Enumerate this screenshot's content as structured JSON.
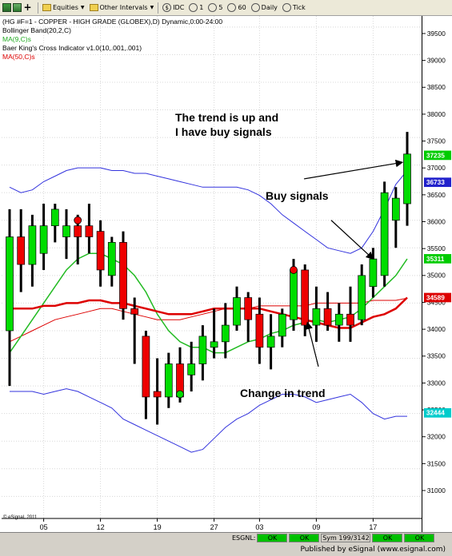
{
  "toolbar": {
    "items": [
      {
        "name": "equities",
        "label": "Equities"
      },
      {
        "name": "other-intervals",
        "label": "Other Intervals"
      },
      {
        "name": "idc",
        "label": "IDC"
      },
      {
        "name": "int-1",
        "label": "1"
      },
      {
        "name": "int-5",
        "label": "5"
      },
      {
        "name": "int-60",
        "label": "60"
      },
      {
        "name": "daily",
        "label": "Daily"
      },
      {
        "name": "tick",
        "label": "Tick"
      }
    ]
  },
  "legend": {
    "line1": "(HG #F=1 - COPPER - HIGH GRADE (GLOBEX),D) Dynamic,0:00-24:00",
    "line2": "Bollinger Band(20,2,C)",
    "line3": "MA(9,C)s",
    "line4": "Baer King's Cross Indicator v1.0(10,.001,.001)",
    "line5": "MA(50,C)s"
  },
  "annotations": {
    "trend_up_1": "The trend is up and",
    "trend_up_2": "I have  buy signals",
    "buy_signals": "Buy signals",
    "change_trend": "Change in trend"
  },
  "copyright": "© eSignal, 2011",
  "status": {
    "esgnl": "ESGNL:",
    "ok": "OK",
    "sym": "Sym 199/3142"
  },
  "footer": "Published by eSignal (www.esignal.com)",
  "colors": {
    "up": "#00dd00",
    "down": "#ee0000",
    "bb": "#3333dd",
    "ma9": "#22bb22",
    "ma50": "#dd0000"
  },
  "chart_data": {
    "type": "candlestick",
    "title": "(HG #F=1 - COPPER - HIGH GRADE (GLOBEX),D)",
    "x_tick_labels": [
      {
        "label": "05",
        "bar": 3
      },
      {
        "label": "12",
        "bar": 8
      },
      {
        "label": "19",
        "bar": 13
      },
      {
        "label": "27",
        "bar": 18
      },
      {
        "label": "03",
        "bar": 22
      },
      {
        "label": "09",
        "bar": 27
      },
      {
        "label": "17",
        "bar": 32
      }
    ],
    "ylim": [
      30600,
      39700
    ],
    "y_ticks": [
      31000,
      31500,
      32000,
      32500,
      33000,
      33500,
      34000,
      34500,
      35000,
      35500,
      36000,
      36500,
      37000,
      37500,
      38000,
      38500,
      39000,
      39500
    ],
    "y_tick_labels": [
      "31000",
      "31500",
      "32000",
      "32500",
      "33000",
      "33500",
      "34000",
      "34500",
      "35000",
      "35500",
      "36000",
      "36500",
      "37000",
      "37500",
      "38000",
      "38500",
      "39000",
      "39500"
    ],
    "price_labels": [
      {
        "value": 37235,
        "label": "37235",
        "color": "#00cc00"
      },
      {
        "value": 36733,
        "label": "36733",
        "color": "#2222cc"
      },
      {
        "value": 35311,
        "label": "35311",
        "color": "#00cc00"
      },
      {
        "value": 34589,
        "label": "34589",
        "color": "#dd0000"
      },
      {
        "value": 32444,
        "label": "32444",
        "color": "#00cccc"
      }
    ],
    "candles": [
      {
        "o": 34000,
        "h": 36200,
        "l": 33000,
        "c": 35700
      },
      {
        "o": 35700,
        "h": 36200,
        "l": 34700,
        "c": 35200
      },
      {
        "o": 35200,
        "h": 36100,
        "l": 34800,
        "c": 35900
      },
      {
        "o": 35400,
        "h": 36300,
        "l": 35100,
        "c": 35900
      },
      {
        "o": 35900,
        "h": 36300,
        "l": 35600,
        "c": 36200
      },
      {
        "o": 35700,
        "h": 36200,
        "l": 35300,
        "c": 35900
      },
      {
        "o": 35900,
        "h": 36100,
        "l": 35200,
        "c": 35700
      },
      {
        "o": 35900,
        "h": 36300,
        "l": 35400,
        "c": 35700
      },
      {
        "o": 35800,
        "h": 36000,
        "l": 34800,
        "c": 35100
      },
      {
        "o": 35000,
        "h": 35700,
        "l": 34800,
        "c": 35600
      },
      {
        "o": 35600,
        "h": 35800,
        "l": 34200,
        "c": 34400
      },
      {
        "o": 34400,
        "h": 34600,
        "l": 33400,
        "c": 34300
      },
      {
        "o": 33900,
        "h": 34000,
        "l": 32400,
        "c": 32800
      },
      {
        "o": 32900,
        "h": 33500,
        "l": 32300,
        "c": 32800
      },
      {
        "o": 32800,
        "h": 33600,
        "l": 32600,
        "c": 33400
      },
      {
        "o": 33400,
        "h": 33700,
        "l": 32700,
        "c": 32800
      },
      {
        "o": 33200,
        "h": 33800,
        "l": 32900,
        "c": 33400
      },
      {
        "o": 33400,
        "h": 34100,
        "l": 33100,
        "c": 33900
      },
      {
        "o": 33700,
        "h": 34400,
        "l": 33500,
        "c": 33800
      },
      {
        "o": 33800,
        "h": 34500,
        "l": 33500,
        "c": 34100
      },
      {
        "o": 34100,
        "h": 34800,
        "l": 34000,
        "c": 34600
      },
      {
        "o": 34600,
        "h": 34700,
        "l": 33800,
        "c": 34200
      },
      {
        "o": 34300,
        "h": 34600,
        "l": 33400,
        "c": 33700
      },
      {
        "o": 33700,
        "h": 34300,
        "l": 33300,
        "c": 33900
      },
      {
        "o": 33900,
        "h": 34400,
        "l": 33700,
        "c": 34300
      },
      {
        "o": 34200,
        "h": 35300,
        "l": 34000,
        "c": 35100
      },
      {
        "o": 35100,
        "h": 35200,
        "l": 33900,
        "c": 34100
      },
      {
        "o": 34100,
        "h": 34800,
        "l": 33800,
        "c": 34400
      },
      {
        "o": 34400,
        "h": 34700,
        "l": 34000,
        "c": 34100
      },
      {
        "o": 34100,
        "h": 34500,
        "l": 33800,
        "c": 34300
      },
      {
        "o": 34300,
        "h": 34800,
        "l": 33800,
        "c": 34100
      },
      {
        "o": 34200,
        "h": 35200,
        "l": 34100,
        "c": 35000
      },
      {
        "o": 34800,
        "h": 35500,
        "l": 34600,
        "c": 35300
      },
      {
        "o": 35000,
        "h": 36700,
        "l": 34800,
        "c": 36500
      },
      {
        "o": 36000,
        "h": 36600,
        "l": 35500,
        "c": 36400
      },
      {
        "o": 36300,
        "h": 37600,
        "l": 35900,
        "c": 37200
      }
    ],
    "bb_upper": [
      36600,
      36500,
      36550,
      36700,
      36800,
      36900,
      36950,
      36950,
      36950,
      36900,
      36900,
      36850,
      36850,
      36800,
      36750,
      36700,
      36650,
      36600,
      36600,
      36600,
      36600,
      36550,
      36450,
      36300,
      36100,
      35950,
      35800,
      35650,
      35500,
      35450,
      35400,
      35500,
      35800,
      36200,
      36650,
      36900
    ],
    "bb_lower": [
      32900,
      32900,
      32900,
      32850,
      32900,
      32950,
      32900,
      32800,
      32700,
      32600,
      32400,
      32300,
      32200,
      32100,
      32000,
      31900,
      31800,
      31850,
      32050,
      32250,
      32400,
      32500,
      32650,
      32750,
      32850,
      32850,
      32800,
      32700,
      32750,
      32800,
      32850,
      32700,
      32500,
      32400,
      32450,
      32450
    ],
    "ma9": [
      33600,
      33900,
      34200,
      34500,
      34800,
      35100,
      35300,
      35400,
      35400,
      35300,
      35200,
      35000,
      34700,
      34300,
      34000,
      33800,
      33700,
      33700,
      33600,
      33600,
      33700,
      33800,
      33850,
      33950,
      34000,
      34100,
      34150,
      34200,
      34150,
      34200,
      34250,
      34400,
      34600,
      34800,
      35000,
      35300
    ],
    "ma50": [
      34400,
      34400,
      34400,
      34450,
      34450,
      34500,
      34500,
      34550,
      34550,
      34500,
      34500,
      34450,
      34400,
      34350,
      34300,
      34300,
      34300,
      34350,
      34400,
      34400,
      34400,
      34400,
      34400,
      34350,
      34300,
      34250,
      34200,
      34150,
      34100,
      34050,
      34050,
      34150,
      34250,
      34300,
      34400,
      34600
    ],
    "ma50_thin": [
      33800,
      33900,
      34000,
      34100,
      34200,
      34250,
      34300,
      34350,
      34400,
      34400,
      34350,
      34300,
      34250,
      34200,
      34200,
      34200,
      34250,
      34300,
      34350,
      34400,
      34400,
      34400,
      34450,
      34450,
      34450,
      34450,
      34450,
      34500,
      34500,
      34500,
      34500,
      34500,
      34550,
      34550,
      34550,
      34589
    ]
  }
}
